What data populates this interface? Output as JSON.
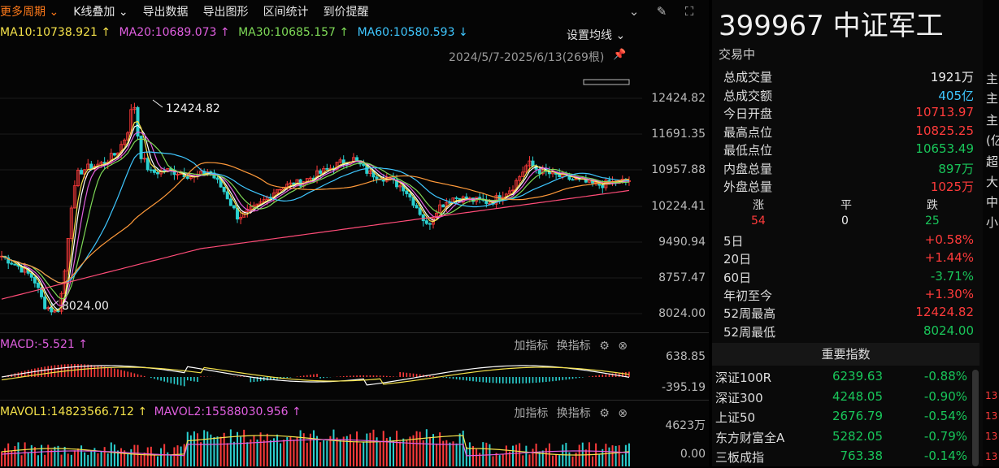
{
  "toolbar": {
    "more_period": "更多周期",
    "kline_overlay": "K线叠加",
    "export_data": "导出数据",
    "export_chart": "导出图形",
    "interval_stats": "区间统计",
    "price_alert": "到价提醒"
  },
  "ma": {
    "ma10": "MA10:10738.921 ↑",
    "ma20": "MA20:10689.073 ↑",
    "ma30": "MA30:10685.157 ↑",
    "ma60": "MA60:10580.593 ↓",
    "settings": "设置均线 ⌄",
    "date_range": "2024/5/7-2025/6/13(269根)",
    "colors": {
      "ma10": "#f5e24a",
      "ma20": "#e05fe0",
      "ma30": "#7ed957",
      "ma60": "#3fc7ff",
      "ma120": "#ff9a3a",
      "ma250": "#ff4c78"
    }
  },
  "price_axis": [
    "12424.82",
    "11691.35",
    "10957.88",
    "10224.41",
    "9490.94",
    "8757.47",
    "8024.00"
  ],
  "annotations": {
    "high": "12424.82",
    "low": "8024.00"
  },
  "macd": {
    "title": "MACD:-5.521 ↑",
    "axis_top": "638.85",
    "axis_bottom": "-395.19"
  },
  "vol": {
    "mavol1": "MAVOL1:14823566.712 ↑",
    "mavol2": "MAVOL2:15588030.956 ↑",
    "axis_top": "4623万",
    "axis_bottom": "0.00"
  },
  "pane_tools": {
    "add": "加指标",
    "switch": "换指标"
  },
  "stock": {
    "code": "399967",
    "name": "中证军工",
    "status": "交易中"
  },
  "quote": [
    {
      "label": "总成交量",
      "value": "1921万",
      "color": "white"
    },
    {
      "label": "总成交额",
      "value": "405亿",
      "color": "cyan"
    },
    {
      "label": "今日开盘",
      "value": "10713.97",
      "color": "red"
    },
    {
      "label": "最高点位",
      "value": "10825.25",
      "color": "red"
    },
    {
      "label": "最低点位",
      "value": "10653.49",
      "color": "green"
    },
    {
      "label": "内盘总量",
      "value": "897万",
      "color": "green"
    },
    {
      "label": "外盘总量",
      "value": "1025万",
      "color": "red"
    }
  ],
  "breadth": {
    "up_label": "涨",
    "flat_label": "平",
    "down_label": "跌",
    "up": "54",
    "flat": "0",
    "down": "25"
  },
  "returns": [
    {
      "label": "5日",
      "value": "+0.58%",
      "color": "red"
    },
    {
      "label": "20日",
      "value": "+1.44%",
      "color": "red"
    },
    {
      "label": "60日",
      "value": "-3.71%",
      "color": "green"
    },
    {
      "label": "年初至今",
      "value": "+1.30%",
      "color": "red"
    },
    {
      "label": "52周最高",
      "value": "12424.82",
      "color": "red"
    },
    {
      "label": "52周最低",
      "value": "8024.00",
      "color": "green"
    }
  ],
  "indices_header": "重要指数",
  "indices": [
    {
      "name": "深证100R",
      "price": "6239.63",
      "change": "-0.88%"
    },
    {
      "name": "深证300",
      "price": "4248.05",
      "change": "-0.90%"
    },
    {
      "name": "上证50",
      "price": "2676.79",
      "change": "-0.54%"
    },
    {
      "name": "东方财富全A",
      "price": "5282.05",
      "change": "-0.79%"
    },
    {
      "name": "三板成指",
      "price": "763.38",
      "change": "-0.14%"
    }
  ],
  "side": {
    "labels": [
      "主",
      "主",
      "主",
      "(亿",
      "超",
      "大",
      "中",
      "小"
    ],
    "nums": [
      "13",
      "13",
      "13",
      "13"
    ]
  }
}
